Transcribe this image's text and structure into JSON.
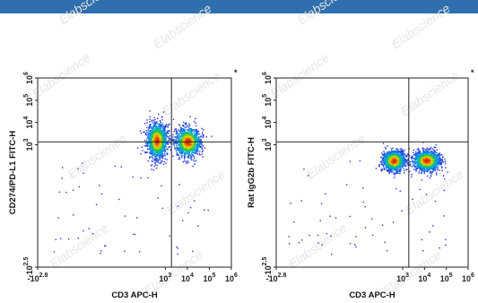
{
  "watermark_text": "Elabscience",
  "colors": {
    "header": "#2f6fae",
    "gate": "#222222",
    "density_low": "#1f2bd6",
    "density_high": "#d11414"
  },
  "chart_data": [
    {
      "type": "scatter",
      "xlabel": "CD3 APC-H",
      "ylabel": "CD274/PD-L1 FITC-H",
      "asterisk": "*",
      "x_scale": "log",
      "y_scale": "log",
      "xlim": [
        -631,
        1000000
      ],
      "ylim": [
        -316,
        1000000
      ],
      "x_ticks": [
        {
          "value": -631,
          "base": "-10",
          "exp": "2.8"
        },
        {
          "value": 1000,
          "base": "10",
          "exp": "3"
        },
        {
          "value": 10000,
          "base": "10",
          "exp": "4"
        },
        {
          "value": 100000,
          "base": "10",
          "exp": "5"
        },
        {
          "value": 1000000,
          "base": "10",
          "exp": "6"
        }
      ],
      "y_ticks": [
        {
          "value": -316,
          "base": "-10",
          "exp": "2.5"
        },
        {
          "value": 1000,
          "base": "10",
          "exp": "3"
        },
        {
          "value": 10000,
          "base": "10",
          "exp": "4"
        },
        {
          "value": 100000,
          "base": "10",
          "exp": "5"
        },
        {
          "value": 1000000,
          "base": "10",
          "exp": "6"
        }
      ],
      "gate": {
        "x": 1900,
        "y": 1350
      },
      "populations": [
        {
          "x": 400,
          "y": 1600,
          "spread_x": 0.22,
          "spread_y": 0.38,
          "weight": 0.55
        },
        {
          "x": 10000,
          "y": 1400,
          "spread_x": 0.28,
          "spread_y": 0.32,
          "weight": 0.45
        }
      ]
    },
    {
      "type": "scatter",
      "xlabel": "CD3 APC-H",
      "ylabel": "Rat IgG2b FITC-H",
      "asterisk": "*",
      "x_scale": "log",
      "y_scale": "log",
      "xlim": [
        -631,
        1000000
      ],
      "ylim": [
        -316,
        1000000
      ],
      "x_ticks": [
        {
          "value": -631,
          "base": "-10",
          "exp": "2.8"
        },
        {
          "value": 1000,
          "base": "10",
          "exp": "3"
        },
        {
          "value": 10000,
          "base": "10",
          "exp": "4"
        },
        {
          "value": 100000,
          "base": "10",
          "exp": "5"
        },
        {
          "value": 1000000,
          "base": "10",
          "exp": "6"
        }
      ],
      "y_ticks": [
        {
          "value": -316,
          "base": "-10",
          "exp": "2.5"
        },
        {
          "value": 1000,
          "base": "10",
          "exp": "3"
        },
        {
          "value": 10000,
          "base": "10",
          "exp": "4"
        },
        {
          "value": 100000,
          "base": "10",
          "exp": "5"
        },
        {
          "value": 1000000,
          "base": "10",
          "exp": "6"
        }
      ],
      "gate": {
        "x": 1900,
        "y": 1350
      },
      "populations": [
        {
          "x": 380,
          "y": 200,
          "spread_x": 0.25,
          "spread_y": 0.22,
          "weight": 0.5
        },
        {
          "x": 12000,
          "y": 200,
          "spread_x": 0.3,
          "spread_y": 0.22,
          "weight": 0.5
        }
      ]
    }
  ]
}
